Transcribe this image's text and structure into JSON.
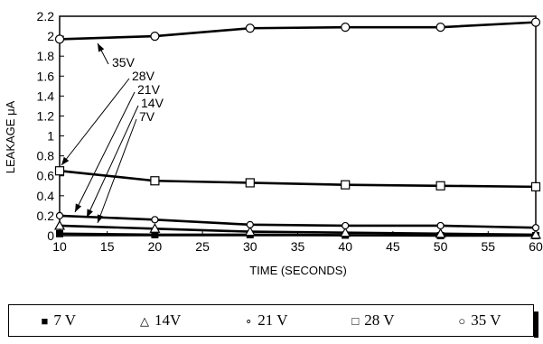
{
  "chart_data": {
    "type": "line",
    "title": "",
    "xlabel": "TIME (SECONDS)",
    "ylabel": "LEAKAGE μA",
    "xlim": [
      10,
      60
    ],
    "ylim": [
      0,
      2.2
    ],
    "x_ticks": [
      "10",
      "15",
      "20",
      "25",
      "30",
      "35",
      "40",
      "45",
      "50",
      "55",
      "60"
    ],
    "y_ticks": [
      "0",
      "0.2",
      "0.4",
      "0.6",
      "0.8",
      "1",
      "1.2",
      "1.4",
      "1.6",
      "1.8",
      "2",
      "2.2"
    ],
    "grid": false,
    "x": [
      10,
      20,
      30,
      40,
      50,
      60
    ],
    "series": [
      {
        "name": "7 V",
        "marker": "filled-square",
        "values": [
          0.02,
          0.01,
          0.01,
          0.005,
          0.0,
          0.0
        ]
      },
      {
        "name": "14V",
        "marker": "triangle",
        "values": [
          0.1,
          0.07,
          0.04,
          0.03,
          0.02,
          0.01
        ]
      },
      {
        "name": "21 V",
        "marker": "small-circle",
        "values": [
          0.2,
          0.16,
          0.11,
          0.1,
          0.1,
          0.08
        ]
      },
      {
        "name": "28 V",
        "marker": "open-square",
        "values": [
          0.65,
          0.55,
          0.53,
          0.51,
          0.5,
          0.49
        ]
      },
      {
        "name": "35 V",
        "marker": "open-circle",
        "values": [
          1.97,
          2.0,
          2.08,
          2.09,
          2.09,
          2.14
        ]
      }
    ],
    "annotations": [
      "35V",
      "28V",
      "21V",
      "14V",
      "7V"
    ],
    "legend": {
      "position": "bottom",
      "items": [
        {
          "marker_glyph": "■",
          "label": "7 V"
        },
        {
          "marker_glyph": "△",
          "label": "14V"
        },
        {
          "marker_glyph": "∘",
          "label": "21 V"
        },
        {
          "marker_glyph": "□",
          "label": "28 V"
        },
        {
          "marker_glyph": "○",
          "label": "35 V"
        }
      ]
    }
  }
}
